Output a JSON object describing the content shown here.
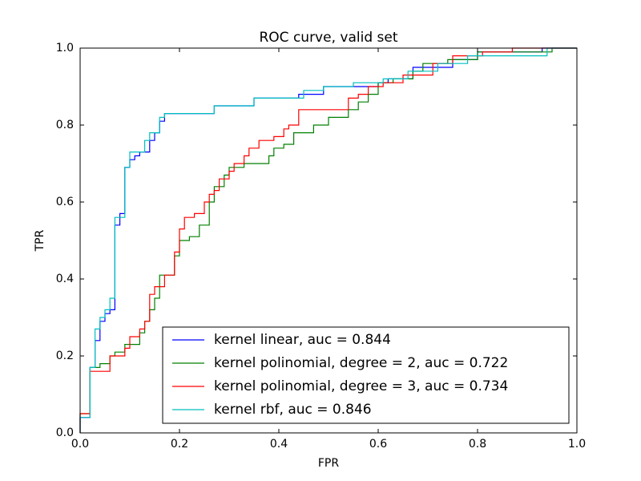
{
  "chart_data": {
    "type": "line",
    "title": "ROC curve, valid set",
    "x_label": "FPR",
    "y_label": "TPR",
    "xlim": [
      0,
      1
    ],
    "ylim": [
      0,
      1
    ],
    "xticks": [
      {
        "value": 0,
        "label": "0.0"
      },
      0.2,
      0.4,
      0.6,
      0.8,
      {
        "value": 1,
        "label": "1.0"
      }
    ],
    "yticks": [
      {
        "value": 0,
        "label": "0.0"
      },
      0.2,
      0.4,
      0.6,
      0.8,
      {
        "value": 1,
        "label": "1.0"
      }
    ],
    "legend": "lower right",
    "series": [
      {
        "name": "kernel linear, auc = 0.844",
        "color": "#0000ff",
        "x": [
          0,
          0,
          0.02,
          0.02,
          0.03,
          0.03,
          0.04,
          0.04,
          0.05,
          0.05,
          0.06,
          0.06,
          0.07,
          0.07,
          0.08,
          0.08,
          0.09,
          0.09,
          0.1,
          0.1,
          0.11,
          0.11,
          0.12,
          0.12,
          0.14,
          0.14,
          0.15,
          0.15,
          0.16,
          0.16,
          0.17,
          0.17,
          0.27,
          0.27,
          0.35,
          0.35,
          0.44,
          0.44,
          0.49,
          0.49,
          0.6,
          0.6,
          0.62,
          0.62,
          0.67,
          0.67,
          0.75,
          0.75,
          0.8,
          0.8,
          0.93,
          0.93,
          1
        ],
        "values": [
          0,
          0.04,
          0.04,
          0.17,
          0.17,
          0.24,
          0.24,
          0.29,
          0.29,
          0.31,
          0.31,
          0.32,
          0.32,
          0.54,
          0.54,
          0.57,
          0.57,
          0.69,
          0.69,
          0.71,
          0.71,
          0.72,
          0.72,
          0.73,
          0.73,
          0.76,
          0.76,
          0.78,
          0.78,
          0.81,
          0.81,
          0.83,
          0.83,
          0.85,
          0.85,
          0.87,
          0.87,
          0.88,
          0.88,
          0.9,
          0.9,
          0.91,
          0.91,
          0.92,
          0.92,
          0.95,
          0.95,
          0.97,
          0.97,
          0.99,
          0.99,
          1,
          1
        ]
      },
      {
        "name": "kernel polinomial, degree = 2, auc = 0.722",
        "color": "#008000",
        "x": [
          0,
          0,
          0.02,
          0.02,
          0.04,
          0.04,
          0.06,
          0.06,
          0.07,
          0.07,
          0.09,
          0.09,
          0.12,
          0.12,
          0.13,
          0.13,
          0.14,
          0.14,
          0.15,
          0.15,
          0.16,
          0.16,
          0.19,
          0.19,
          0.2,
          0.2,
          0.22,
          0.22,
          0.24,
          0.24,
          0.26,
          0.26,
          0.27,
          0.27,
          0.29,
          0.29,
          0.3,
          0.3,
          0.33,
          0.33,
          0.38,
          0.38,
          0.39,
          0.39,
          0.41,
          0.41,
          0.43,
          0.43,
          0.47,
          0.47,
          0.5,
          0.5,
          0.54,
          0.54,
          0.56,
          0.56,
          0.58,
          0.58,
          0.6,
          0.6,
          0.63,
          0.63,
          0.67,
          0.67,
          0.69,
          0.69,
          0.74,
          0.74,
          0.8,
          0.8,
          0.95,
          0.95,
          1
        ],
        "values": [
          0,
          0.05,
          0.05,
          0.17,
          0.17,
          0.18,
          0.18,
          0.2,
          0.2,
          0.21,
          0.21,
          0.23,
          0.23,
          0.26,
          0.26,
          0.29,
          0.29,
          0.32,
          0.32,
          0.35,
          0.35,
          0.41,
          0.41,
          0.46,
          0.46,
          0.5,
          0.5,
          0.51,
          0.51,
          0.54,
          0.54,
          0.6,
          0.6,
          0.64,
          0.64,
          0.67,
          0.67,
          0.69,
          0.69,
          0.7,
          0.7,
          0.72,
          0.72,
          0.74,
          0.74,
          0.75,
          0.75,
          0.78,
          0.78,
          0.8,
          0.8,
          0.82,
          0.82,
          0.84,
          0.84,
          0.86,
          0.86,
          0.88,
          0.88,
          0.91,
          0.91,
          0.92,
          0.92,
          0.94,
          0.94,
          0.96,
          0.96,
          0.97,
          0.97,
          0.99,
          0.99,
          1,
          1
        ]
      },
      {
        "name": "kernel polinomial, degree = 3, auc = 0.734",
        "color": "#ff0000",
        "x": [
          0,
          0,
          0.02,
          0.02,
          0.06,
          0.06,
          0.09,
          0.09,
          0.1,
          0.1,
          0.12,
          0.12,
          0.13,
          0.13,
          0.14,
          0.14,
          0.15,
          0.15,
          0.17,
          0.17,
          0.19,
          0.19,
          0.2,
          0.2,
          0.21,
          0.21,
          0.23,
          0.23,
          0.25,
          0.25,
          0.26,
          0.26,
          0.27,
          0.27,
          0.28,
          0.28,
          0.3,
          0.3,
          0.31,
          0.31,
          0.33,
          0.33,
          0.34,
          0.34,
          0.36,
          0.36,
          0.39,
          0.39,
          0.41,
          0.41,
          0.42,
          0.42,
          0.44,
          0.44,
          0.54,
          0.54,
          0.56,
          0.56,
          0.58,
          0.58,
          0.61,
          0.61,
          0.65,
          0.65,
          0.71,
          0.71,
          0.75,
          0.75,
          0.81,
          0.81,
          0.87,
          0.87,
          1
        ],
        "values": [
          0,
          0.05,
          0.05,
          0.16,
          0.16,
          0.2,
          0.2,
          0.22,
          0.22,
          0.25,
          0.25,
          0.27,
          0.27,
          0.29,
          0.29,
          0.36,
          0.36,
          0.38,
          0.38,
          0.41,
          0.41,
          0.47,
          0.47,
          0.53,
          0.53,
          0.56,
          0.56,
          0.57,
          0.57,
          0.6,
          0.6,
          0.62,
          0.62,
          0.63,
          0.63,
          0.66,
          0.66,
          0.68,
          0.68,
          0.7,
          0.7,
          0.72,
          0.72,
          0.74,
          0.74,
          0.76,
          0.76,
          0.77,
          0.77,
          0.79,
          0.79,
          0.8,
          0.8,
          0.84,
          0.84,
          0.87,
          0.87,
          0.88,
          0.88,
          0.9,
          0.9,
          0.91,
          0.91,
          0.93,
          0.93,
          0.96,
          0.96,
          0.98,
          0.98,
          0.99,
          0.99,
          1,
          1
        ]
      },
      {
        "name": "kernel rbf, auc = 0.846",
        "color": "#00bfbf",
        "x": [
          0,
          0,
          0.02,
          0.02,
          0.03,
          0.03,
          0.04,
          0.04,
          0.05,
          0.05,
          0.06,
          0.06,
          0.07,
          0.07,
          0.09,
          0.09,
          0.1,
          0.1,
          0.13,
          0.13,
          0.14,
          0.14,
          0.16,
          0.16,
          0.17,
          0.17,
          0.27,
          0.27,
          0.35,
          0.35,
          0.45,
          0.45,
          0.49,
          0.49,
          0.55,
          0.55,
          0.61,
          0.61,
          0.66,
          0.66,
          0.72,
          0.72,
          0.78,
          0.78,
          0.94,
          0.94,
          1
        ],
        "values": [
          0,
          0.04,
          0.04,
          0.17,
          0.17,
          0.27,
          0.27,
          0.3,
          0.3,
          0.32,
          0.32,
          0.35,
          0.35,
          0.56,
          0.56,
          0.69,
          0.69,
          0.73,
          0.73,
          0.76,
          0.76,
          0.78,
          0.78,
          0.82,
          0.82,
          0.83,
          0.83,
          0.85,
          0.85,
          0.87,
          0.87,
          0.89,
          0.89,
          0.9,
          0.9,
          0.91,
          0.91,
          0.92,
          0.92,
          0.94,
          0.94,
          0.96,
          0.96,
          0.98,
          0.98,
          1,
          1
        ]
      }
    ]
  }
}
